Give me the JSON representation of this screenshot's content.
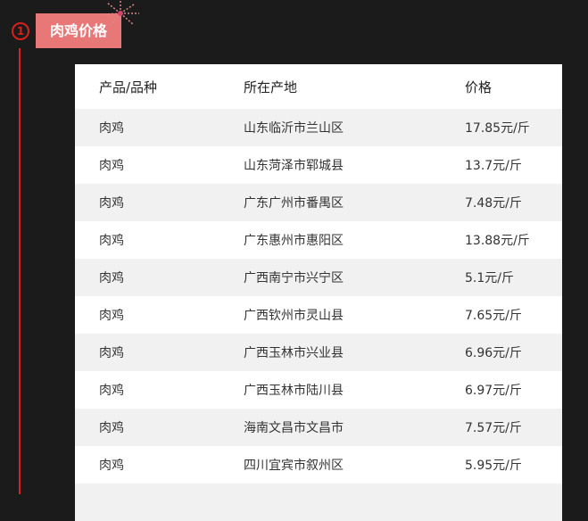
{
  "section": {
    "number": "1",
    "title": "肉鸡价格",
    "accent": "#e87778",
    "line_color": "#d9201a"
  },
  "table": {
    "headers": [
      "产品/品种",
      "所在产地",
      "价格"
    ],
    "rows": [
      [
        "肉鸡",
        "山东临沂市兰山区",
        "17.85元/斤"
      ],
      [
        "肉鸡",
        "山东菏泽市郓城县",
        "13.7元/斤"
      ],
      [
        "肉鸡",
        "广东广州市番禺区",
        "7.48元/斤"
      ],
      [
        "肉鸡",
        "广东惠州市惠阳区",
        "13.88元/斤"
      ],
      [
        "肉鸡",
        "广西南宁市兴宁区",
        "5.1元/斤"
      ],
      [
        "肉鸡",
        "广西钦州市灵山县",
        "7.65元/斤"
      ],
      [
        "肉鸡",
        "广西玉林市兴业县",
        "6.96元/斤"
      ],
      [
        "肉鸡",
        "广西玉林市陆川县",
        "6.97元/斤"
      ],
      [
        "肉鸡",
        "海南文昌市文昌市",
        "7.57元/斤"
      ],
      [
        "肉鸡",
        "四川宜宾市叙州区",
        "5.95元/斤"
      ],
      [
        "",
        "",
        ""
      ]
    ]
  }
}
